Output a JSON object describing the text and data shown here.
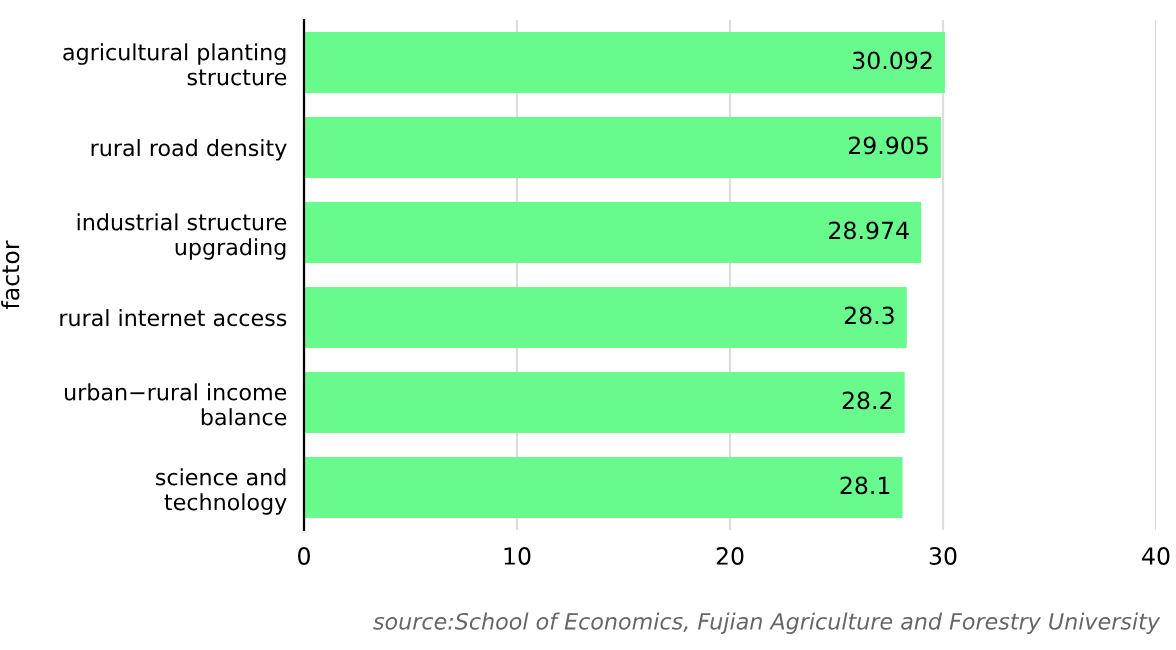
{
  "chart_data": {
    "type": "bar",
    "orientation": "horizontal",
    "ylabel": "factor",
    "categories": [
      "agricultural planting\nstructure",
      "rural road density",
      "industrial structure\nupgrading",
      "rural internet access",
      "urban−rural income\nbalance",
      "science and\ntechnology"
    ],
    "values": [
      30.092,
      29.905,
      28.974,
      28.3,
      28.2,
      28.1
    ],
    "color": "#69fa8e",
    "xlim": [
      0,
      40
    ],
    "xticks": [
      0,
      10,
      20,
      30,
      40
    ],
    "grid": "x",
    "data_labels": true,
    "annotations": [
      "source:School of Economics, Fujian Agriculture and Forestry University"
    ]
  }
}
